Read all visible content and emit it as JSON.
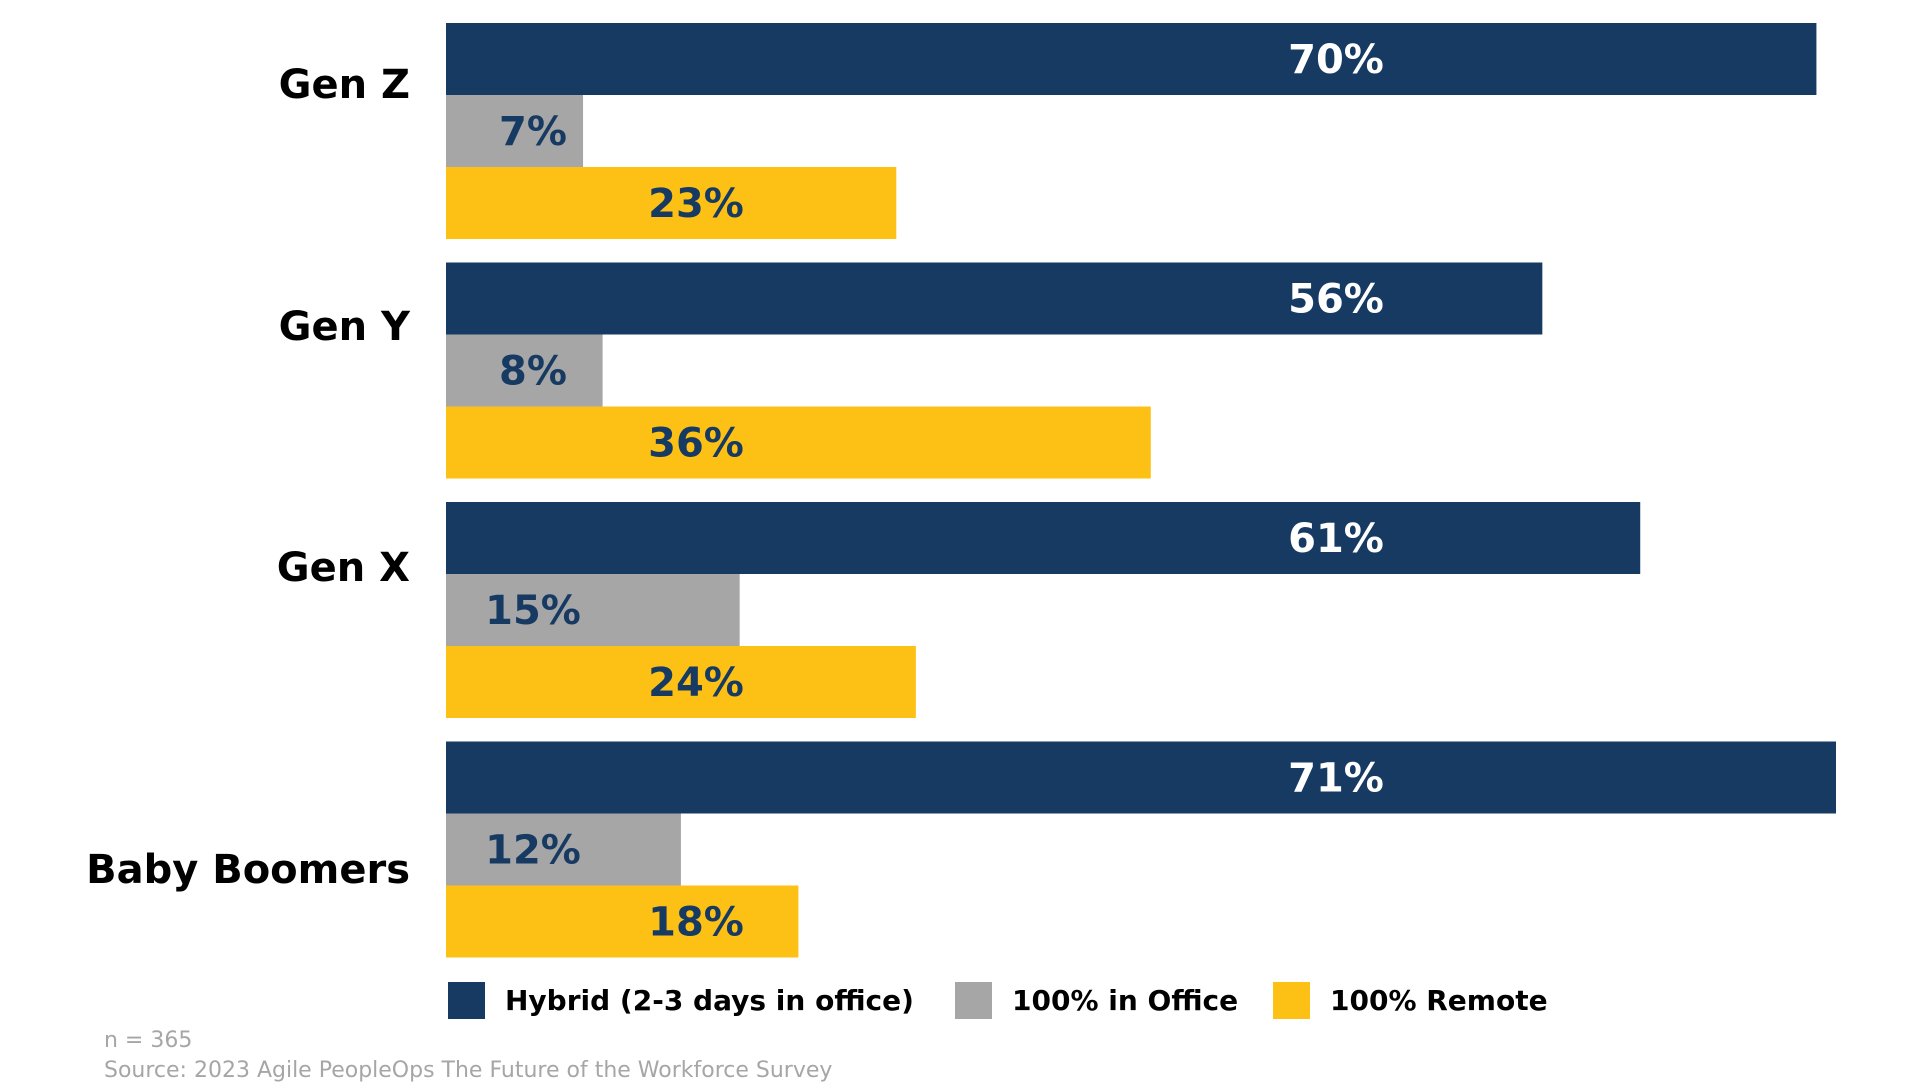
{
  "chart_data": {
    "type": "bar",
    "orientation": "horizontal",
    "categories": [
      "Gen Z",
      "Gen Y",
      "Gen X",
      "Baby Boomers"
    ],
    "series": [
      {
        "name": "Hybrid (2-3 days in office)",
        "color": "#173a63",
        "label_color": "#ffffff",
        "values": [
          70,
          56,
          61,
          71
        ],
        "labels": [
          "70%",
          "56%",
          "61%",
          "71%"
        ]
      },
      {
        "name": "100% in Office",
        "color": "#a6a6a6",
        "label_color": "#173a63",
        "values": [
          7,
          8,
          15,
          12
        ],
        "labels": [
          "7%",
          "8%",
          "15%",
          "12%"
        ]
      },
      {
        "name": "100% Remote",
        "color": "#fdc116",
        "label_color": "#173a63",
        "values": [
          23,
          36,
          24,
          18
        ],
        "labels": [
          "23%",
          "36%",
          "24%",
          "18%"
        ]
      }
    ],
    "xlim": [
      0,
      71
    ],
    "grid": false,
    "legend_position": "bottom"
  },
  "notes": {
    "sample": "n = 365",
    "source": "Source: 2023 Agile PeopleOps The Future of the Workforce Survey"
  }
}
